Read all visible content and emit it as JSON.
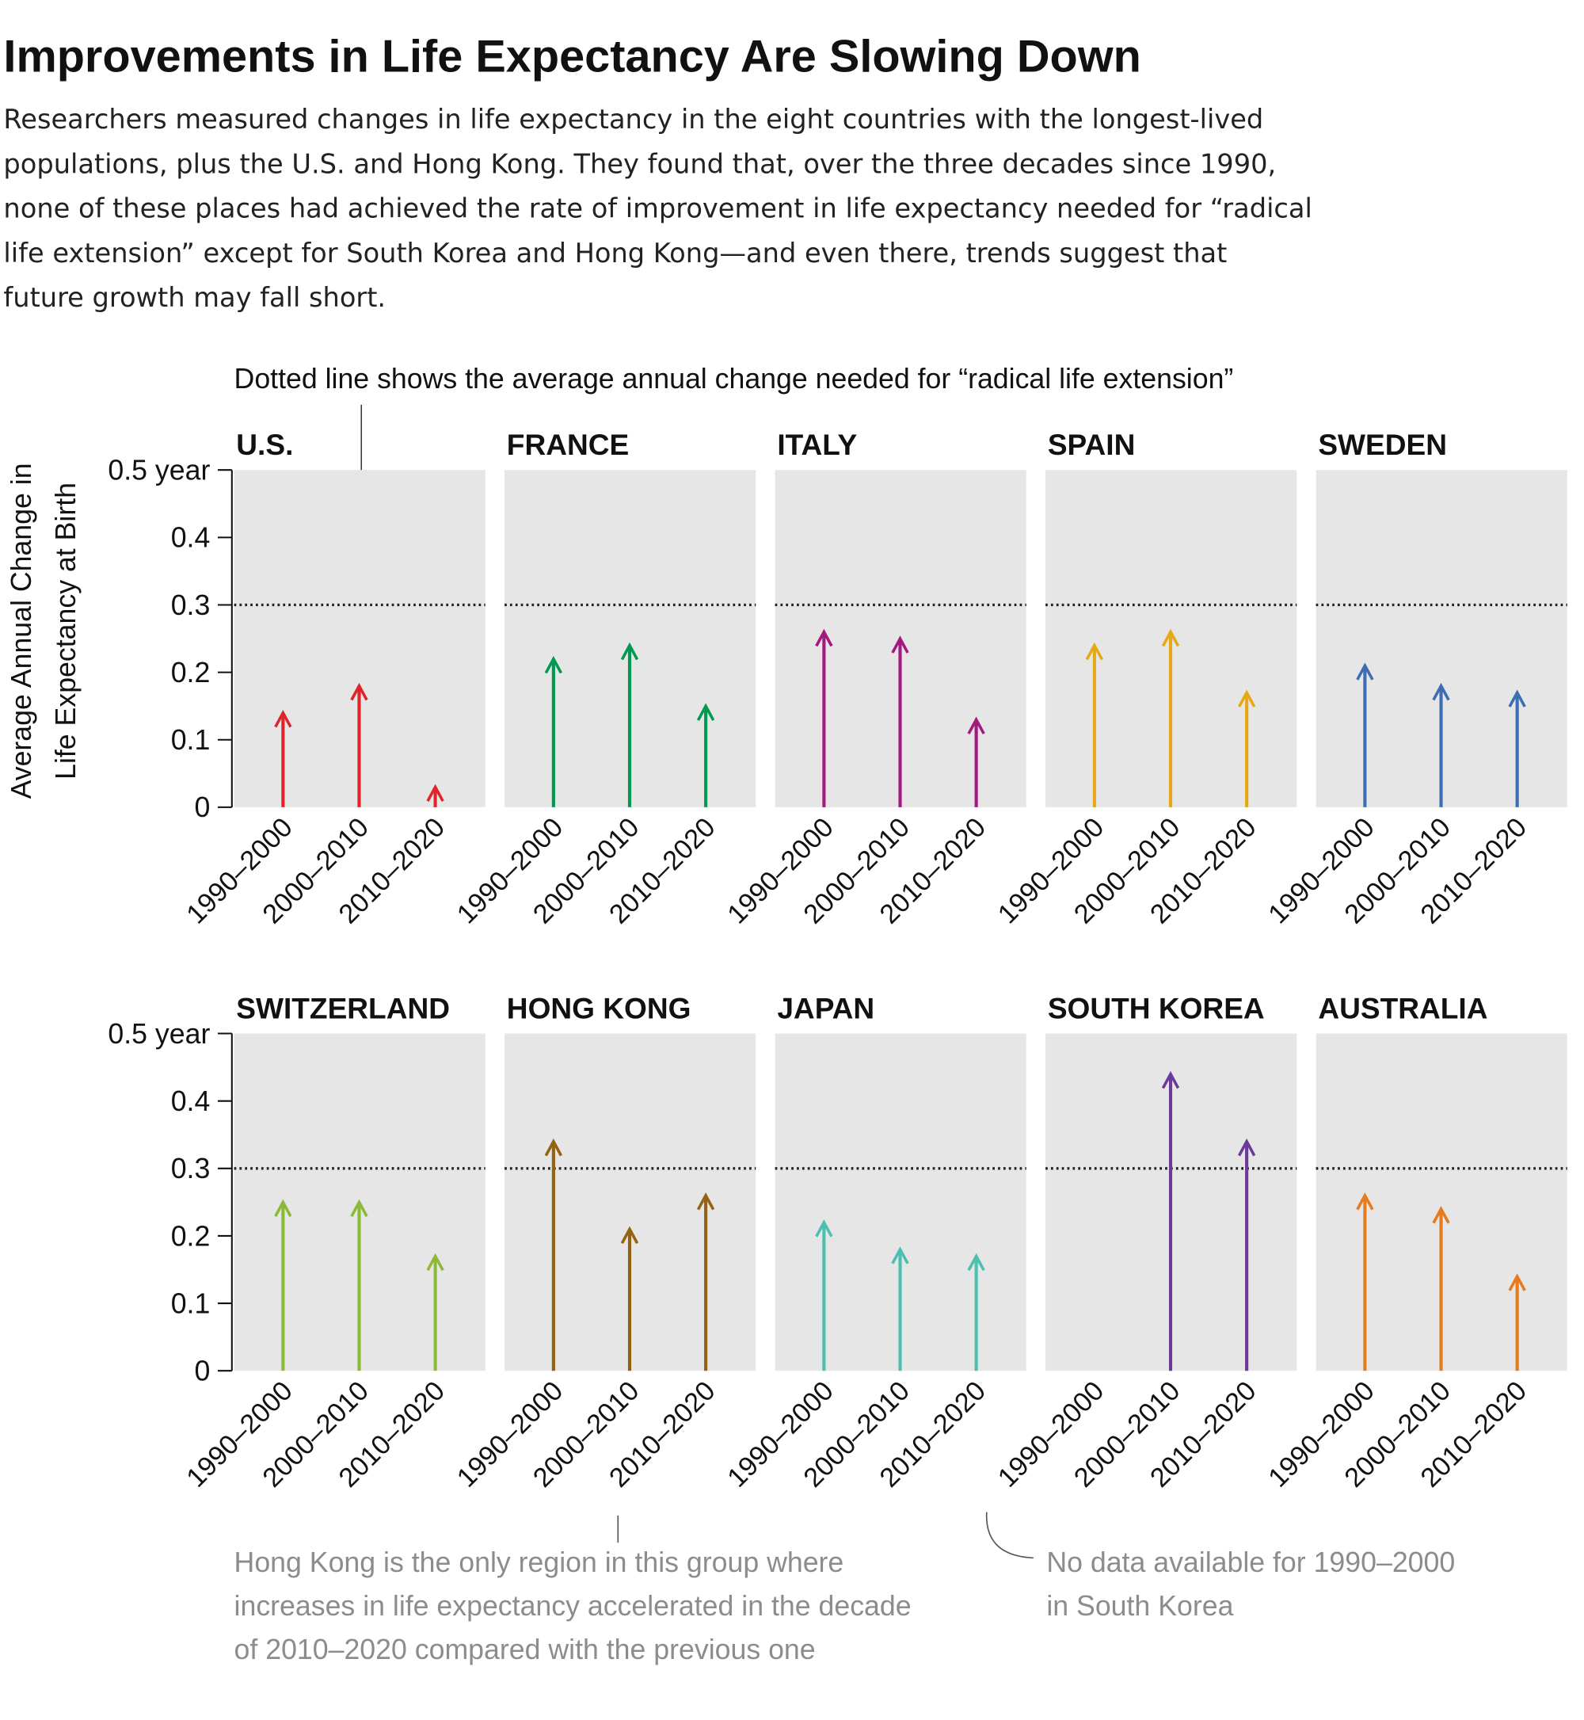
{
  "header": {
    "title": "Improvements in Life Expectancy Are Slowing Down",
    "description_lines": [
      "Researchers measured changes in life expectancy in the eight countries with the longest-lived",
      "populations, plus the U.S. and Hong Kong. They found that, over the three decades since 1990,",
      "none of these places had achieved the rate of improvement in life expectancy needed for “radical",
      "life extension” except for South Korea and Hong Kong—and even there, trends suggest that",
      "future growth may fall short."
    ]
  },
  "annotations": {
    "dotted_line": "Dotted line shows the average annual change needed for “radical life extension”",
    "hong_kong_lines": [
      "Hong Kong is the only region in this group where",
      "increases in life expectancy accelerated in the decade",
      "of 2010–2020 compared with the previous one"
    ],
    "south_korea_lines": [
      "No data available for 1990–2000",
      "in South Korea"
    ]
  },
  "chart_data": {
    "type": "bar",
    "style": "arrow small multiples",
    "ylabel_lines": [
      "Average Annual Change in",
      "Life Expectancy at Birth"
    ],
    "ylim": [
      0,
      0.5
    ],
    "yticks": [
      "0",
      "0.1",
      "0.2",
      "0.3",
      "0.4",
      "0.5 year"
    ],
    "reference_line": {
      "value": 0.3,
      "style": "dotted"
    },
    "grid": false,
    "categories": [
      "1990–2000",
      "2000–2010",
      "2010–2020"
    ],
    "panels": [
      {
        "name": "U.S.",
        "color": "#e0242b",
        "values": [
          0.14,
          0.18,
          0.03
        ]
      },
      {
        "name": "FRANCE",
        "color": "#00994d",
        "values": [
          0.22,
          0.24,
          0.15
        ]
      },
      {
        "name": "ITALY",
        "color": "#a3197f",
        "values": [
          0.26,
          0.25,
          0.13
        ]
      },
      {
        "name": "SPAIN",
        "color": "#e6a817",
        "values": [
          0.24,
          0.26,
          0.17
        ]
      },
      {
        "name": "SWEDEN",
        "color": "#3d6db3",
        "values": [
          0.21,
          0.18,
          0.17
        ]
      },
      {
        "name": "SWITZERLAND",
        "color": "#8cba38",
        "values": [
          0.25,
          0.25,
          0.17
        ]
      },
      {
        "name": "HONG KONG",
        "color": "#936212",
        "values": [
          0.34,
          0.21,
          0.26
        ]
      },
      {
        "name": "JAPAN",
        "color": "#4dbfb0",
        "values": [
          0.22,
          0.18,
          0.17
        ]
      },
      {
        "name": "SOUTH KOREA",
        "color": "#6e3a99",
        "values": [
          null,
          0.44,
          0.34
        ]
      },
      {
        "name": "AUSTRALIA",
        "color": "#e67a1e",
        "values": [
          0.26,
          0.24,
          0.14
        ]
      }
    ]
  }
}
